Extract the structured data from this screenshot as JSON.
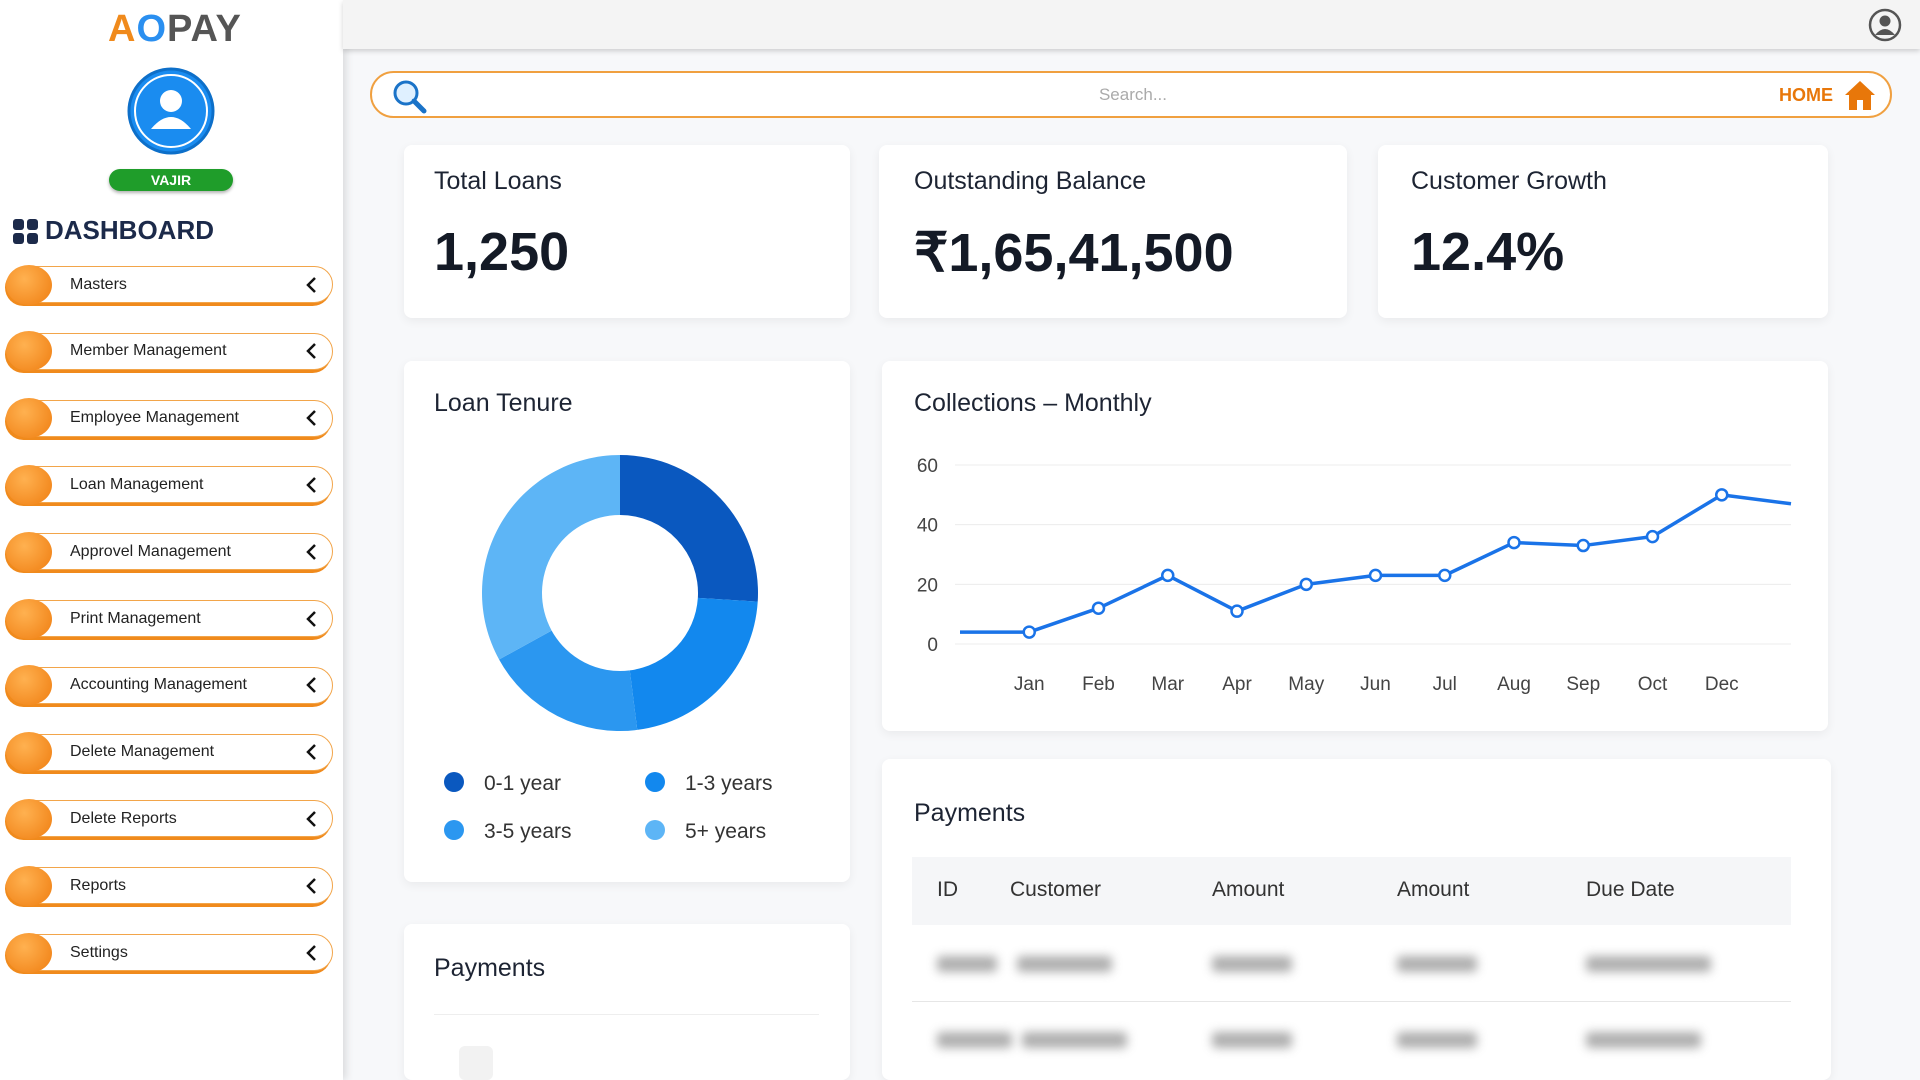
{
  "sidebar": {
    "logo_parts": [
      "A",
      "O",
      "PAY"
    ],
    "user": "VAJIR",
    "section": "DASHBOARD",
    "menu": [
      "Masters",
      "Member Management",
      "Employee Management",
      "Loan Management",
      "Approvel Management",
      "Print Management",
      "Accounting Management",
      "Delete Management",
      "Delete Reports",
      "Reports",
      "Settings"
    ]
  },
  "search": {
    "placeholder": "Search...",
    "home": "HOME"
  },
  "kpis": [
    {
      "title": "Total Loans",
      "value": "1,250"
    },
    {
      "title": "Outstanding Balance",
      "value": "₹1,65,41,500"
    },
    {
      "title": "Customer Growth",
      "value": "12.4%"
    }
  ],
  "chart_data": [
    {
      "type": "pie",
      "title": "Loan Tenure",
      "categories": [
        "0-1 year",
        "1-3 years",
        "3-5 years",
        "5+ years"
      ],
      "values": [
        26,
        22,
        19,
        33
      ],
      "colors": [
        "#0a58bf",
        "#1288ee",
        "#2b97f0",
        "#5db5f6"
      ]
    },
    {
      "type": "line",
      "title": "Collections – Monthly",
      "categories": [
        null,
        "Jan",
        "Feb",
        "Mar",
        "Apr",
        "May",
        "Jun",
        "Jul",
        "Aug",
        "Sep",
        "Oct",
        "Dec",
        null
      ],
      "series": [
        {
          "color": "#1a73e8",
          "values": [
            4,
            4,
            12,
            23,
            11,
            20,
            23,
            23,
            34,
            33,
            36,
            50,
            47
          ]
        }
      ],
      "ylim": [
        0,
        60
      ],
      "yticks": [
        0,
        20,
        40,
        60
      ],
      "grid": true
    }
  ],
  "payments_table": {
    "title": "Payments",
    "columns": [
      "ID",
      "Customer",
      "Amount",
      "Amount",
      "Due Date"
    ]
  },
  "payments_card": {
    "title": "Payments"
  }
}
